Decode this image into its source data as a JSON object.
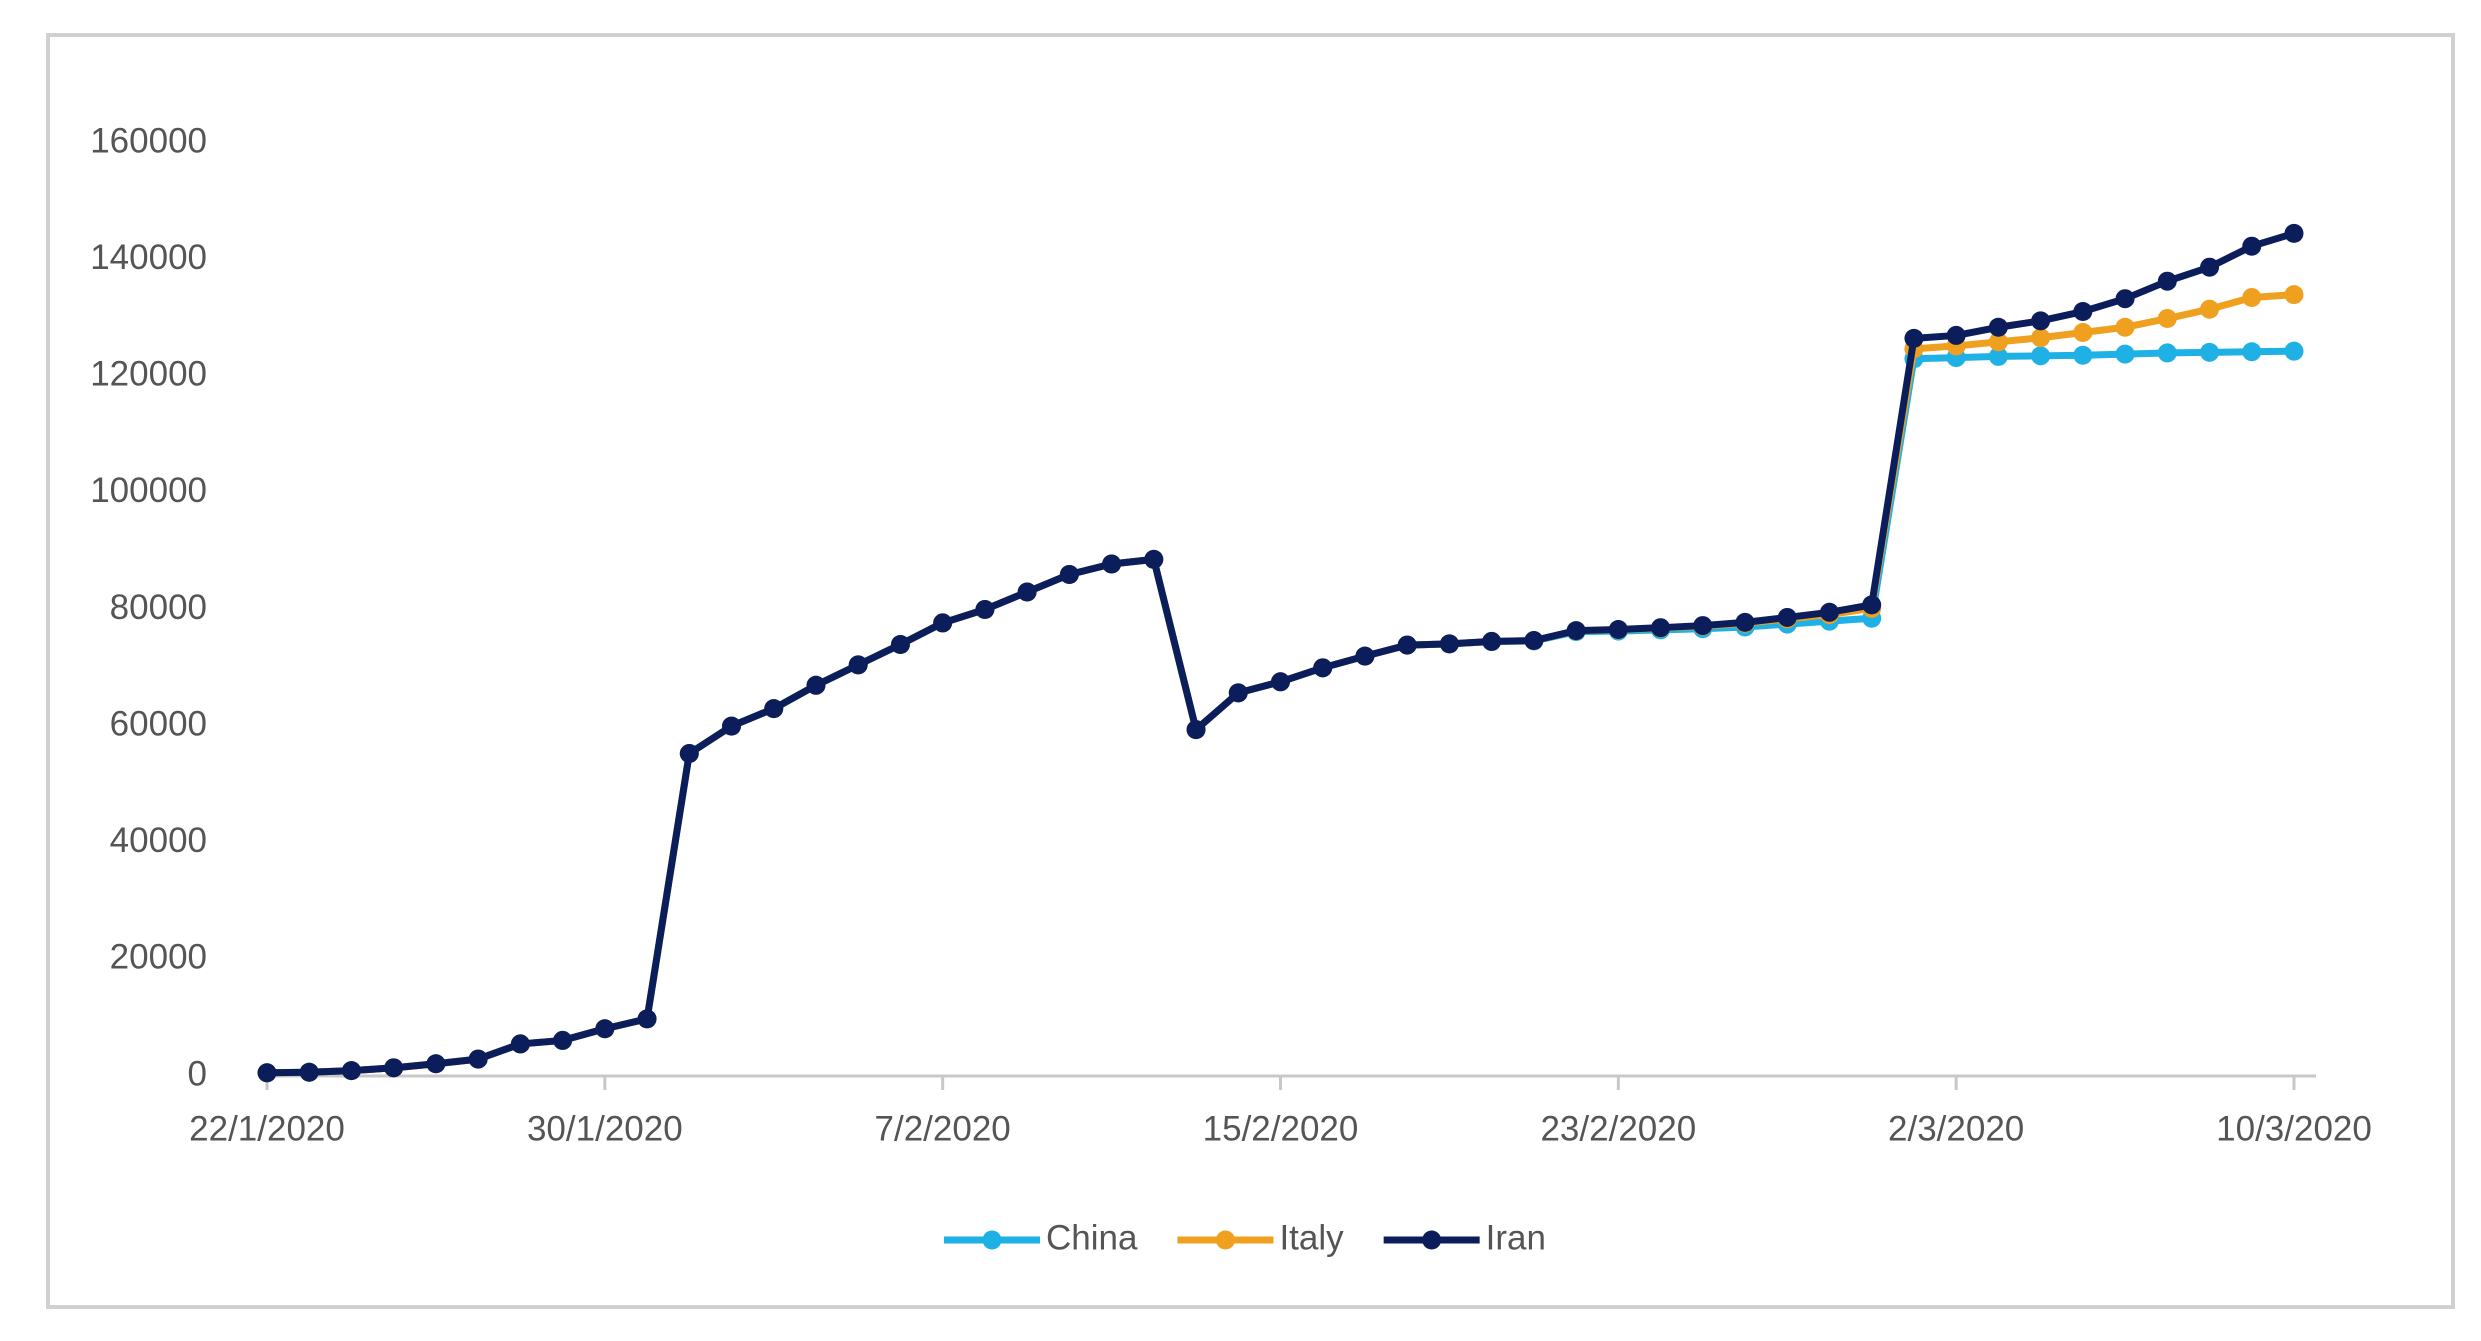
{
  "chart_data": {
    "type": "line",
    "stacked": true,
    "grid": false,
    "legend": "bottom",
    "categories": [
      "22/1/2020",
      null,
      null,
      null,
      null,
      null,
      null,
      null,
      "30/1/2020",
      null,
      null,
      null,
      null,
      null,
      null,
      null,
      "7/2/2020",
      null,
      null,
      null,
      null,
      null,
      null,
      null,
      "15/2/2020",
      null,
      null,
      null,
      null,
      null,
      null,
      null,
      "23/2/2020",
      null,
      null,
      null,
      null,
      null,
      null,
      null,
      "2/3/2020",
      null,
      null,
      null,
      null,
      null,
      null,
      null,
      "10/3/2020"
    ],
    "series": [
      {
        "name": "China",
        "color": "#1fb1e6",
        "values": [
          550,
          640,
          920,
          1400,
          2100,
          2900,
          5500,
          6100,
          8100,
          9800,
          55300,
          60000,
          63000,
          67000,
          70500,
          74000,
          77700,
          80000,
          83000,
          86000,
          87800,
          88600,
          59400,
          65700,
          67600,
          70000,
          72000,
          73900,
          74100,
          74500,
          74600,
          76200,
          76300,
          76500,
          76700,
          77000,
          77500,
          78000,
          78500,
          123000,
          123200,
          123400,
          123500,
          123600,
          123800,
          124000,
          124100,
          124200,
          124300
        ]
      },
      {
        "name": "Italy",
        "color": "#f0a01f",
        "values": [
          0,
          0,
          0,
          0,
          0,
          0,
          0,
          0,
          0,
          0,
          0,
          0,
          0,
          0,
          0,
          0,
          0,
          0,
          0,
          0,
          0,
          0,
          0,
          0,
          0,
          0,
          0,
          0,
          0,
          20,
          60,
          150,
          230,
          320,
          450,
          650,
          890,
          1130,
          1700,
          1700,
          2000,
          2500,
          3100,
          3900,
          4600,
          5900,
          7400,
          9300,
          9700
        ]
      },
      {
        "name": "Iran",
        "color": "#0b1e5b",
        "values": [
          0,
          0,
          0,
          0,
          0,
          0,
          0,
          0,
          0,
          0,
          0,
          0,
          0,
          0,
          0,
          0,
          0,
          0,
          0,
          0,
          0,
          0,
          0,
          0,
          0,
          0,
          0,
          0,
          2,
          5,
          18,
          28,
          43,
          61,
          95,
          139,
          245,
          388,
          593,
          1800,
          1800,
          2500,
          2900,
          3600,
          4900,
          6400,
          7200,
          8800,
          10500
        ]
      }
    ],
    "ylim": [
      0,
      160000
    ],
    "yticks": [
      0,
      20000,
      40000,
      60000,
      80000,
      100000,
      120000,
      140000,
      160000
    ]
  }
}
